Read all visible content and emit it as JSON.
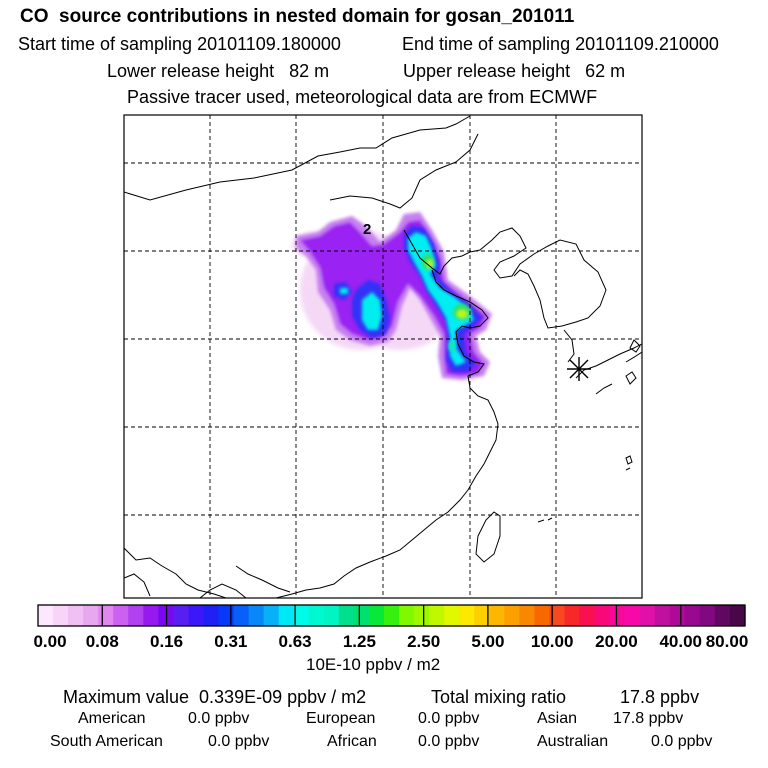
{
  "header": {
    "title": "CO  source contributions in nested domain for gosan_201011",
    "start_label": "Start time of sampling 20101109.180000",
    "end_label": "End time of sampling 20101109.210000",
    "lower_label": "Lower release height   82 m",
    "upper_label": "Upper release height   62 m",
    "note": "Passive tracer used, meteorological data are from ECMWF"
  },
  "chart_data": {
    "type": "heatmap",
    "title": "CO  source contributions in nested domain for gosan_201011",
    "colorbar_ticks": [
      "0.00",
      "0.08",
      "0.16",
      "0.31",
      "0.63",
      "1.25",
      "2.50",
      "5.00",
      "10.00",
      "20.00",
      "40.00",
      "80.00"
    ],
    "colorbar_colors": [
      "#fce8fc",
      "#f8d4f8",
      "#f0c0f4",
      "#e8a8f0",
      "#e088f0",
      "#cc60f0",
      "#b040f0",
      "#9818f0",
      "#7808f0",
      "#5820f0",
      "#3c18f8",
      "#2020f4",
      "#0838f8",
      "#0860f8",
      "#0888f8",
      "#08b0f8",
      "#00e8f8",
      "#00fae8",
      "#00f8d0",
      "#00f4c4",
      "#00e08c",
      "#00e070",
      "#08e838",
      "#38f010",
      "#80f800",
      "#a0f800",
      "#c0f800",
      "#e0f800",
      "#fce800",
      "#fcd000",
      "#fcb800",
      "#fca000",
      "#f88800",
      "#f86800",
      "#f84820",
      "#f82828",
      "#f81050",
      "#f80878",
      "#f80898",
      "#f808a8",
      "#e010a8",
      "#c010a0",
      "#b00898",
      "#980890",
      "#800880",
      "#600860",
      "#480848"
    ],
    "units": "10E-10 ppbv / m2",
    "annotation_number": "2",
    "receptor_marker": "Gosan"
  },
  "stats": {
    "max_label": "Maximum value  0.339E-09 ppbv / m2",
    "total_label": "Total mixing ratio",
    "total_value": "17.8 ppbv",
    "regions": [
      {
        "name": "American",
        "value": "0.0 ppbv"
      },
      {
        "name": "European",
        "value": "0.0 ppbv"
      },
      {
        "name": "Asian",
        "value": "17.8 ppbv"
      },
      {
        "name": "South American",
        "value": "0.0 ppbv"
      },
      {
        "name": "African",
        "value": "0.0 ppbv"
      },
      {
        "name": "Australian",
        "value": "0.0 ppbv"
      }
    ]
  }
}
